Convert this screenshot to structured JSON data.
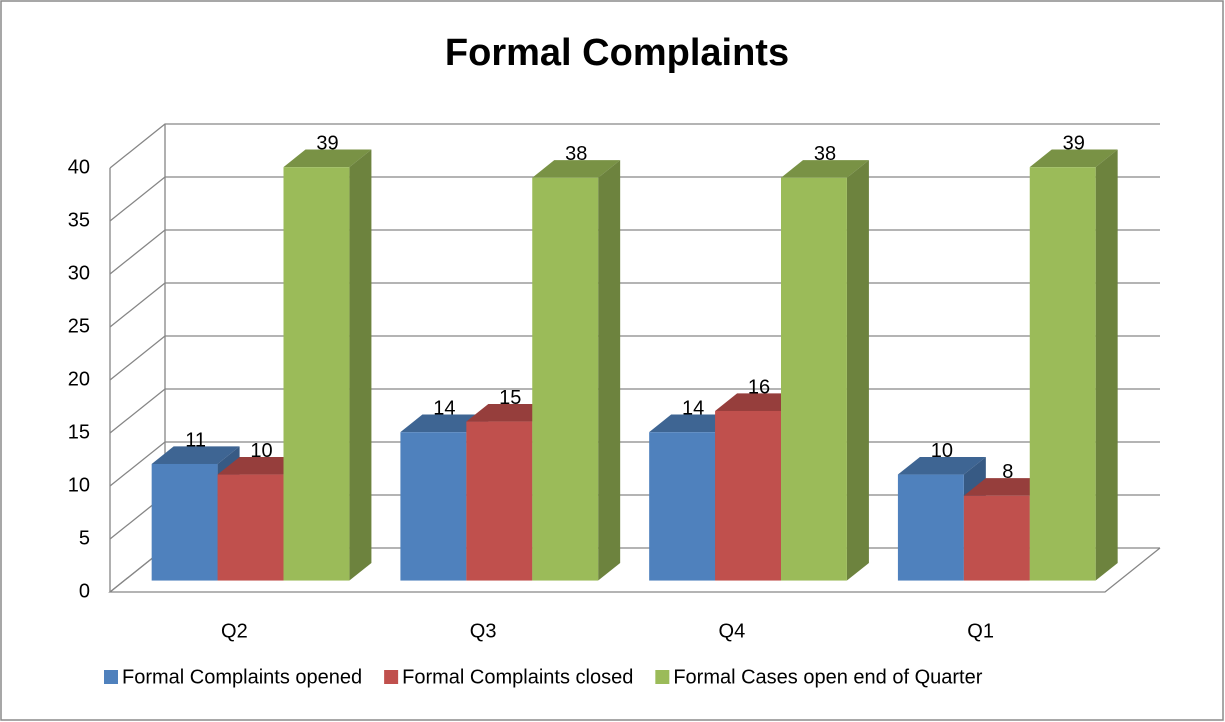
{
  "chart_data": {
    "type": "bar3d",
    "title": "Formal Complaints",
    "categories": [
      "Q2",
      "Q3",
      "Q4",
      "Q1"
    ],
    "series": [
      {
        "name": "Formal Complaints opened",
        "color": "#4f81bd",
        "values": [
          11,
          14,
          14,
          10
        ]
      },
      {
        "name": "Formal Complaints closed",
        "color": "#c0504d",
        "values": [
          10,
          15,
          16,
          8
        ]
      },
      {
        "name": "Formal Cases open end of Quarter",
        "color": "#9bbb59",
        "values": [
          39,
          38,
          38,
          39
        ]
      }
    ],
    "ylim": [
      0,
      40
    ],
    "yticks": [
      0,
      5,
      10,
      15,
      20,
      25,
      30,
      35,
      40
    ],
    "grid": true,
    "legend": "bottom"
  }
}
